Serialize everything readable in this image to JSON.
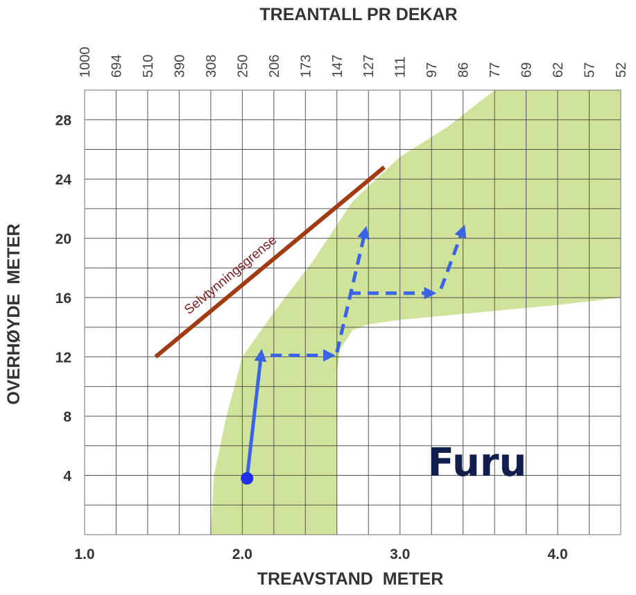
{
  "chart_data": {
    "type": "area",
    "label": "Furu",
    "xlabel": "TREAVSTAND  METER",
    "ylabel": "OVERHØYDE  METER",
    "x2label": "TREANTALL PR DEKAR",
    "xlim": [
      1.0,
      4.4
    ],
    "ylim": [
      0,
      30
    ],
    "grid": true,
    "x_ticks": [
      {
        "value": 1.0,
        "label": "1.0"
      },
      {
        "value": 2.0,
        "label": "2.0"
      },
      {
        "value": 3.0,
        "label": "3.0"
      },
      {
        "value": 4.0,
        "label": "4.0"
      }
    ],
    "y_ticks": [
      {
        "value": 4,
        "label": "4"
      },
      {
        "value": 8,
        "label": "8"
      },
      {
        "value": 12,
        "label": "12"
      },
      {
        "value": 16,
        "label": "16"
      },
      {
        "value": 20,
        "label": "20"
      },
      {
        "value": 24,
        "label": "24"
      },
      {
        "value": 28,
        "label": "28"
      }
    ],
    "top_ticks": [
      {
        "spacing": 1.0,
        "label": "1000"
      },
      {
        "spacing": 1.2,
        "label": "694"
      },
      {
        "spacing": 1.4,
        "label": "510"
      },
      {
        "spacing": 1.6,
        "label": "390"
      },
      {
        "spacing": 1.8,
        "label": "308"
      },
      {
        "spacing": 2.0,
        "label": "250"
      },
      {
        "spacing": 2.2,
        "label": "206"
      },
      {
        "spacing": 2.4,
        "label": "173"
      },
      {
        "spacing": 2.6,
        "label": "147"
      },
      {
        "spacing": 2.8,
        "label": "127"
      },
      {
        "spacing": 3.0,
        "label": "111"
      },
      {
        "spacing": 3.2,
        "label": "97"
      },
      {
        "spacing": 3.4,
        "label": "86"
      },
      {
        "spacing": 3.6,
        "label": "77"
      },
      {
        "spacing": 3.8,
        "label": "69"
      },
      {
        "spacing": 4.0,
        "label": "62"
      },
      {
        "spacing": 4.2,
        "label": "57"
      },
      {
        "spacing": 4.4,
        "label": "52"
      }
    ],
    "band": {
      "color": "#cfe39a",
      "outline": [
        [
          1.8,
          0
        ],
        [
          1.82,
          4
        ],
        [
          1.9,
          8
        ],
        [
          2.0,
          12
        ],
        [
          2.2,
          15
        ],
        [
          2.45,
          18.5
        ],
        [
          2.7,
          22.5
        ],
        [
          3.0,
          25.5
        ],
        [
          3.3,
          27.5
        ],
        [
          3.6,
          30
        ],
        [
          4.4,
          30
        ],
        [
          4.4,
          16
        ],
        [
          4.0,
          15.5
        ],
        [
          3.5,
          15
        ],
        [
          3.0,
          14.5
        ],
        [
          2.8,
          14.2
        ],
        [
          2.7,
          13.8
        ],
        [
          2.62,
          12.5
        ],
        [
          2.6,
          11
        ],
        [
          2.6,
          0
        ]
      ]
    },
    "self_thinning_limit": {
      "label": "Selvtynningsgrense",
      "color": "#a23a12",
      "points": [
        [
          1.45,
          12
        ],
        [
          2.9,
          24.8
        ]
      ]
    },
    "start_point": {
      "x": 2.03,
      "y": 3.8,
      "color": "#1f2fe6"
    },
    "path_color": "#3b63e6",
    "arrows": [
      {
        "style": "solid",
        "from": [
          2.03,
          3.8
        ],
        "to": [
          2.12,
          12.2
        ]
      },
      {
        "style": "dashed",
        "from": [
          2.18,
          12.1
        ],
        "to": [
          2.56,
          12.1
        ]
      },
      {
        "style": "dashed",
        "from": [
          2.6,
          12.3
        ],
        "to": [
          2.78,
          20.5
        ]
      },
      {
        "style": "dashed",
        "from": [
          2.68,
          16.3
        ],
        "to": [
          3.2,
          16.3
        ]
      },
      {
        "style": "dashed",
        "from": [
          3.26,
          16.6
        ],
        "to": [
          3.4,
          20.6
        ]
      }
    ]
  }
}
